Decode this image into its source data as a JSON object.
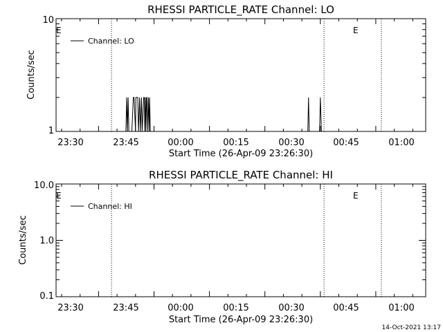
{
  "footer": {
    "timestamp": "14-Oct-2021 13:17"
  },
  "chart_data": [
    {
      "type": "line",
      "title": "RHESSI PARTICLE_RATE Channel: LO",
      "xlabel": "Start Time (26-Apr-09 23:26:30)",
      "ylabel": "Counts/sec",
      "y_scale": "log",
      "ylim": [
        1,
        10
      ],
      "y_ticks": [
        1,
        10
      ],
      "y_tick_labels": [
        "1",
        "10"
      ],
      "xlim_minutes": [
        -26.5,
        73.5
      ],
      "x_ticks": [
        -30,
        -15,
        0,
        15,
        30,
        45,
        60
      ],
      "x_tick_labels": [
        "23:30",
        "23:45",
        "00:00",
        "00:15",
        "00:30",
        "00:45",
        "01:00"
      ],
      "legend": {
        "label": "Channel: LO",
        "placement": "top-left"
      },
      "event_lines": [
        {
          "x": -11.5,
          "label": "E"
        },
        {
          "x": 46,
          "label": "E"
        },
        {
          "x": 61.5,
          "label": ""
        }
      ],
      "series": [
        {
          "name": "Channel: LO",
          "x": [
            -7.6,
            -7.4,
            -7.2,
            -7.0,
            -6.8,
            -6.0,
            -5.6,
            -5.4,
            -5.0,
            -4.9,
            -4.4,
            -4.2,
            -3.9,
            -3.7,
            -3.4,
            -3.2,
            -2.8,
            -2.6,
            -2.5,
            -2.3,
            -2.2,
            -2.0,
            -1.9,
            -1.7,
            -1.5,
            -1.3,
            -1.2,
            -1.0,
            -0.6,
            -0.4,
            41.6,
            41.8,
            42.0,
            42.2,
            44.8,
            45.0,
            45.3
          ],
          "y": [
            1,
            2,
            1,
            2,
            1,
            1,
            2,
            2,
            1,
            2,
            2,
            1,
            2,
            1,
            2,
            1,
            2,
            2,
            1,
            2,
            1,
            2,
            2,
            1,
            2,
            1,
            2,
            1,
            1,
            1,
            1,
            2,
            1,
            1,
            1,
            2,
            1
          ]
        }
      ]
    },
    {
      "type": "line",
      "title": "RHESSI PARTICLE_RATE Channel: HI",
      "xlabel": "Start Time (26-Apr-09 23:26:30)",
      "ylabel": "Counts/sec",
      "y_scale": "log",
      "ylim": [
        0.1,
        10
      ],
      "y_ticks": [
        0.1,
        1,
        10
      ],
      "y_tick_labels": [
        "0.1",
        "1.0",
        "10.0"
      ],
      "xlim_minutes": [
        -26.5,
        73.5
      ],
      "x_ticks": [
        -30,
        -15,
        0,
        15,
        30,
        45,
        60
      ],
      "x_tick_labels": [
        "23:30",
        "23:45",
        "00:00",
        "00:15",
        "00:30",
        "00:45",
        "01:00"
      ],
      "legend": {
        "label": "Channel: HI",
        "placement": "top-left"
      },
      "event_lines": [
        {
          "x": -11.5,
          "label": "E"
        },
        {
          "x": 46,
          "label": "E"
        },
        {
          "x": 61.5,
          "label": ""
        }
      ],
      "series": [
        {
          "name": "Channel: HI",
          "x": [],
          "y": []
        }
      ]
    }
  ]
}
